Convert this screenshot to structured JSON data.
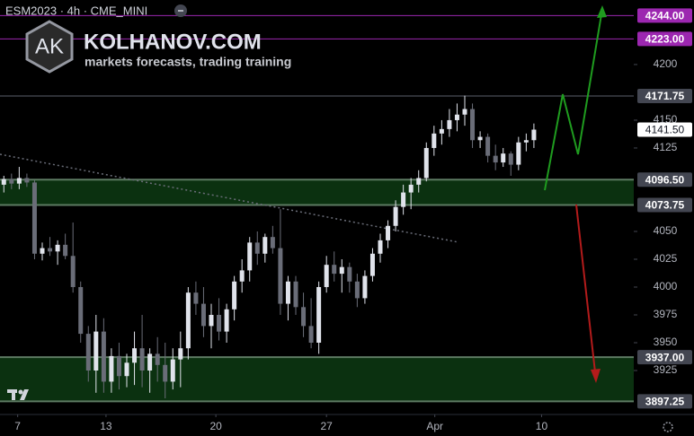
{
  "chart_data": {
    "type": "candlestick",
    "title": "ESM2023 · 4h · CME_MINI",
    "annotations": [
      "AK",
      "KOLHANOV.COM",
      "markets forecasts, trading training"
    ],
    "x": [
      0,
      1,
      2,
      3,
      4,
      5,
      6,
      7,
      8,
      9,
      10,
      11,
      12,
      13,
      14,
      15,
      16,
      17,
      18,
      19,
      20,
      21,
      22,
      23,
      24,
      25,
      26,
      27,
      28,
      29,
      30,
      31,
      32,
      33,
      34,
      35,
      36,
      37,
      38,
      39,
      40,
      41,
      42,
      43,
      44,
      45,
      46,
      47,
      48,
      49,
      50,
      51,
      52,
      53,
      54,
      55,
      56,
      57,
      58,
      59,
      60,
      61,
      62,
      63,
      64,
      65,
      66,
      67,
      68,
      69
    ],
    "open": [
      4092,
      4097,
      4093,
      4098,
      4094,
      4030,
      4035,
      4032,
      4038,
      4028,
      4000,
      3958,
      3925,
      3960,
      3915,
      3938,
      3920,
      3932,
      3945,
      3925,
      3940,
      3930,
      3915,
      3935,
      3945,
      3995,
      3985,
      3965,
      3975,
      3960,
      3980,
      4005,
      4015,
      4040,
      4030,
      4045,
      4035,
      3985,
      4005,
      3982,
      3965,
      3950,
      4000,
      4020,
      4012,
      4018,
      4005,
      3990,
      4010,
      4030,
      4042,
      4055,
      4072,
      4085,
      4092,
      4098,
      4125,
      4138,
      4142,
      4150,
      4155,
      4160,
      4132,
      4135,
      4118,
      4112,
      4120,
      4110,
      4130,
      4132
    ],
    "high": [
      4100,
      4102,
      4108,
      4102,
      4096,
      4040,
      4045,
      4042,
      4048,
      4058,
      4005,
      3965,
      3975,
      3972,
      3945,
      3950,
      3940,
      3960,
      3975,
      3945,
      3955,
      3950,
      3945,
      3960,
      4000,
      4005,
      4000,
      3985,
      3990,
      3985,
      4010,
      4025,
      4045,
      4050,
      4048,
      4055,
      4070,
      4010,
      4010,
      3995,
      3990,
      4005,
      4028,
      4032,
      4025,
      4022,
      4012,
      4015,
      4035,
      4048,
      4060,
      4078,
      4092,
      4098,
      4105,
      4130,
      4145,
      4150,
      4160,
      4165,
      4172,
      4165,
      4140,
      4138,
      4128,
      4125,
      4122,
      4135,
      4138,
      4147
    ],
    "low": [
      4085,
      4088,
      4088,
      4090,
      4025,
      4024,
      4028,
      4020,
      4025,
      3995,
      3950,
      3915,
      3905,
      3905,
      3905,
      3908,
      3910,
      3912,
      3910,
      3905,
      3915,
      3900,
      3908,
      3910,
      3935,
      3975,
      3955,
      3945,
      3952,
      3950,
      3970,
      3995,
      4005,
      4020,
      4022,
      4030,
      3975,
      3970,
      3975,
      3955,
      3945,
      3940,
      3995,
      4005,
      3995,
      3995,
      3982,
      3985,
      4005,
      4022,
      4035,
      4050,
      4065,
      4070,
      4085,
      4095,
      4118,
      4128,
      4135,
      4140,
      4145,
      4125,
      4125,
      4112,
      4105,
      4108,
      4100,
      4105,
      4122,
      4125
    ],
    "close": [
      4097,
      4093,
      4098,
      4094,
      4030,
      4035,
      4032,
      4038,
      4028,
      4000,
      3958,
      3925,
      3960,
      3915,
      3938,
      3920,
      3932,
      3945,
      3925,
      3940,
      3930,
      3915,
      3935,
      3945,
      3995,
      3985,
      3965,
      3975,
      3960,
      3980,
      4005,
      4015,
      4040,
      4030,
      4045,
      4035,
      3985,
      4005,
      3982,
      3965,
      3950,
      4000,
      4020,
      4012,
      4018,
      4005,
      3990,
      4010,
      4030,
      4042,
      4055,
      4072,
      4085,
      4092,
      4098,
      4125,
      4138,
      4142,
      4150,
      4155,
      4160,
      4132,
      4135,
      4118,
      4112,
      4120,
      4110,
      4130,
      4132,
      4141.5
    ],
    "up_color": "#e0e3eb",
    "down_color": "#6a6d78",
    "xlim": [
      -0.5,
      82
    ],
    "ylim": [
      3885.5,
      4258
    ],
    "xticks": [
      {
        "value": 1.8,
        "label": "7"
      },
      {
        "value": 13.3,
        "label": "13"
      },
      {
        "value": 27.6,
        "label": "20"
      },
      {
        "value": 42,
        "label": "27"
      },
      {
        "value": 56.1,
        "label": "Apr"
      },
      {
        "value": 70,
        "label": "10"
      }
    ],
    "yticks": [
      3925,
      3950,
      3975,
      4000,
      4025,
      4050,
      4125,
      4150,
      4200
    ],
    "zones": [
      {
        "from": 4073.75,
        "to": 4096.5,
        "color": "#0d3a13"
      },
      {
        "from": 3897.25,
        "to": 3937,
        "color": "#0d3a13"
      }
    ],
    "levels": [
      {
        "value": 4244,
        "label": "4244.00",
        "color": "#9c27b0"
      },
      {
        "value": 4223,
        "label": "4223.00",
        "color": "#9c27b0"
      },
      {
        "value": 4171.75,
        "label": "4171.75",
        "color": "#434651"
      },
      {
        "value": 4141.5,
        "label": "4141.50",
        "color": "#ffffff"
      },
      {
        "value": 4096.5,
        "label": "4096.50",
        "color": "#434651"
      },
      {
        "value": 4073.75,
        "label": "4073.75",
        "color": "#434651"
      },
      {
        "value": 3937,
        "label": "3937.00",
        "color": "#434651"
      },
      {
        "value": 3897.25,
        "label": "3897.25",
        "color": "#434651"
      }
    ]
  }
}
